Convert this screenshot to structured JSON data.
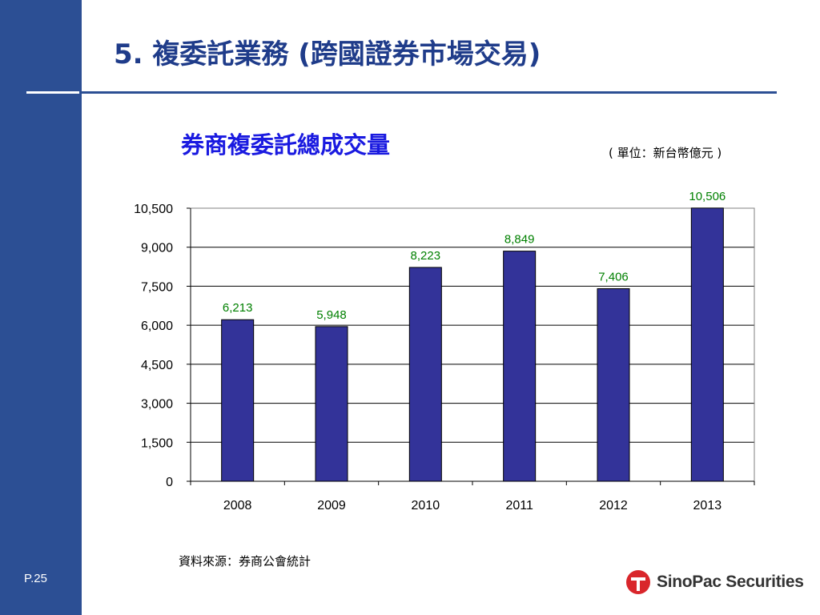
{
  "slide": {
    "title": "5. 複委託業務 (跨國證券市場交易)",
    "page_number": "P.25",
    "source": "資料來源：券商公會統計",
    "logo_text": "SinoPac Securities",
    "brand_color": "#2c4f94",
    "title_color": "#1f3c8a"
  },
  "chart_data": {
    "type": "bar",
    "title": "券商複委託總成交量",
    "unit": "( 單位：新台幣億元 )",
    "categories": [
      "2008",
      "2009",
      "2010",
      "2011",
      "2012",
      "2013"
    ],
    "values": [
      6213,
      5948,
      8223,
      8849,
      7406,
      10506
    ],
    "value_labels": [
      "6,213",
      "5,948",
      "8,223",
      "8,849",
      "7,406",
      "10,506"
    ],
    "ylim": [
      0,
      10500
    ],
    "yticks": [
      0,
      1500,
      3000,
      4500,
      6000,
      7500,
      9000,
      10500
    ],
    "ytick_labels": [
      "0",
      "1,500",
      "3,000",
      "4,500",
      "6,000",
      "7,500",
      "9,000",
      "10,500"
    ],
    "grid": true,
    "bar_color": "#333399",
    "label_color": "#008000"
  }
}
